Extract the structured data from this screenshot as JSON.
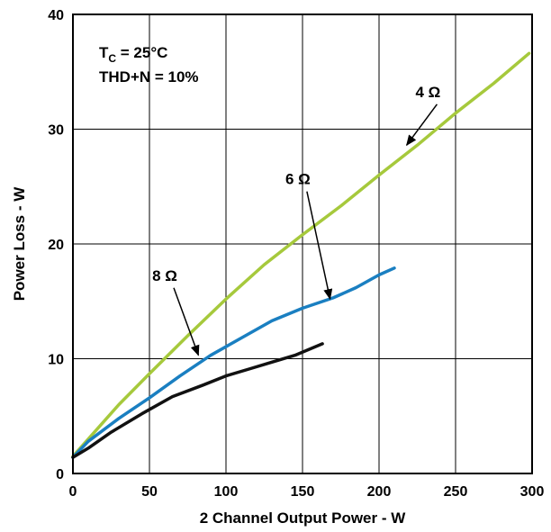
{
  "chart_data": {
    "type": "line",
    "xlabel": "2 Channel Output Power - W",
    "ylabel": "Power Loss - W",
    "xlim": [
      0,
      300
    ],
    "ylim": [
      0,
      40
    ],
    "x_ticks": [
      0,
      50,
      100,
      150,
      200,
      250,
      300
    ],
    "y_ticks": [
      0,
      10,
      20,
      30,
      40
    ],
    "x_tick_labels": [
      "0",
      "50",
      "100",
      "150",
      "200",
      "250",
      "300"
    ],
    "y_tick_labels": [
      "0",
      "10",
      "20",
      "30",
      "40"
    ],
    "grid": true,
    "condition_lines": [
      {
        "main": "T",
        "sub": "C",
        "rest": " = 25°C"
      },
      {
        "main": "THD+N = 10%",
        "sub": "",
        "rest": ""
      }
    ],
    "series": [
      {
        "name": "4 Ω",
        "color": "#a6c93c",
        "points": [
          [
            0,
            1.5
          ],
          [
            10,
            3.0
          ],
          [
            30,
            6.0
          ],
          [
            50,
            8.7
          ],
          [
            75,
            12.0
          ],
          [
            100,
            15.2
          ],
          [
            125,
            18.2
          ],
          [
            150,
            20.8
          ],
          [
            175,
            23.3
          ],
          [
            200,
            26.0
          ],
          [
            225,
            28.6
          ],
          [
            250,
            31.4
          ],
          [
            275,
            34.0
          ],
          [
            298,
            36.6
          ]
        ]
      },
      {
        "name": "6 Ω",
        "color": "#1a7fc1",
        "points": [
          [
            0,
            1.4
          ],
          [
            10,
            2.8
          ],
          [
            30,
            4.8
          ],
          [
            50,
            6.6
          ],
          [
            70,
            8.5
          ],
          [
            90,
            10.3
          ],
          [
            110,
            11.8
          ],
          [
            130,
            13.3
          ],
          [
            150,
            14.4
          ],
          [
            170,
            15.3
          ],
          [
            185,
            16.2
          ],
          [
            200,
            17.3
          ],
          [
            210,
            17.9
          ]
        ]
      },
      {
        "name": "8 Ω",
        "color": "#111111",
        "points": [
          [
            0,
            1.4
          ],
          [
            10,
            2.2
          ],
          [
            25,
            3.6
          ],
          [
            45,
            5.2
          ],
          [
            65,
            6.7
          ],
          [
            85,
            7.7
          ],
          [
            100,
            8.5
          ],
          [
            115,
            9.1
          ],
          [
            130,
            9.7
          ],
          [
            145,
            10.3
          ],
          [
            163,
            11.3
          ]
        ]
      }
    ],
    "annotations": [
      {
        "text": "4 Ω",
        "series": "4 Ω",
        "label_x": 232,
        "label_y": 32.8,
        "tip_x": 218,
        "tip_y": 28.6
      },
      {
        "text": "6 Ω",
        "series": "6 Ω",
        "label_x": 147,
        "label_y": 25.2,
        "tip_x": 168,
        "tip_y": 15.2
      },
      {
        "text": "8 Ω",
        "series": "8 Ω",
        "label_x": 60,
        "label_y": 16.8,
        "tip_x": 82,
        "tip_y": 10.3
      }
    ]
  }
}
